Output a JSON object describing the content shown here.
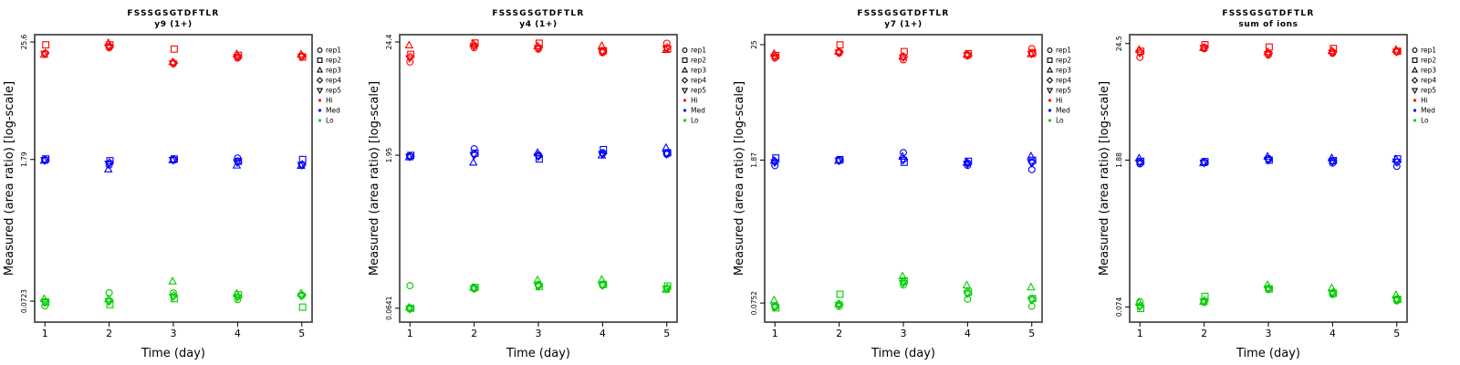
{
  "figure": {
    "background": "#ffffff",
    "border_color": "#4d4d4d",
    "text_color": "#000000"
  },
  "chart_data": {
    "type": "scatter",
    "layout": "4 small-multiple panels, shared axes style, legend right of each plot box",
    "shared": {
      "xlabel": "Time (day)",
      "ylabel": "Measured (area ratio) [log-scale]",
      "x_ticks": [
        "1",
        "2",
        "3",
        "4",
        "5"
      ],
      "x_values": [
        1,
        2,
        3,
        4,
        5
      ],
      "xlim": [
        0.84,
        5.16
      ],
      "yscale": "log",
      "grid": "off",
      "legend_position": "right-outside-top",
      "levels": [
        {
          "name": "Hi",
          "color": "#ff0000"
        },
        {
          "name": "Med",
          "color": "#0000ff"
        },
        {
          "name": "Lo",
          "color": "#00cd00"
        }
      ],
      "reps": [
        {
          "name": "rep1",
          "symbol": "circle"
        },
        {
          "name": "rep2",
          "symbol": "square"
        },
        {
          "name": "rep3",
          "symbol": "triangle-up"
        },
        {
          "name": "rep4",
          "symbol": "diamond"
        },
        {
          "name": "rep5",
          "symbol": "triangle-down"
        }
      ]
    },
    "panels": [
      {
        "title": "FSSSGSGTDFTLR",
        "subtitle": "y9 (1+)",
        "yticks": [
          "25.6",
          "1.79",
          "0.0723"
        ],
        "ytick_values": [
          25.6,
          1.79,
          0.0723
        ],
        "ylim": [
          0.045,
          30.2
        ],
        "series": {
          "Hi": [
            [
              19.7,
              24.0,
              19.2,
              19.9,
              19.6
            ],
            [
              22.5,
              24.0,
              25.0,
              23.2,
              23.0
            ],
            [
              15.7,
              21.8,
              16.2,
              15.9,
              15.8
            ],
            [
              17.8,
              18.9,
              19.4,
              18.4,
              18.2
            ],
            [
              18.6,
              18.2,
              19.3,
              18.6,
              18.4
            ]
          ],
          "Med": [
            [
              1.76,
              1.81,
              1.74,
              1.77,
              1.76
            ],
            [
              1.58,
              1.74,
              1.43,
              1.66,
              1.63
            ],
            [
              1.78,
              1.81,
              1.76,
              1.78,
              1.77
            ],
            [
              1.85,
              1.72,
              1.56,
              1.7,
              1.68
            ],
            [
              1.57,
              1.79,
              1.55,
              1.6,
              1.58
            ]
          ],
          "Lo": [
            [
              0.065,
              0.071,
              0.076,
              0.0715,
              0.0705
            ],
            [
              0.0875,
              0.067,
              0.0755,
              0.073,
              0.072
            ],
            [
              0.087,
              0.0765,
              0.113,
              0.082,
              0.08
            ],
            [
              0.075,
              0.0835,
              0.0855,
              0.08,
              0.079
            ],
            [
              0.082,
              0.0632,
              0.086,
              0.083,
              0.0815
            ]
          ]
        }
      },
      {
        "title": "FSSSGSGTDFTLR",
        "subtitle": "y4 (1+)",
        "yticks": [
          "24.4",
          "1.95",
          "0.0641"
        ],
        "ytick_values": [
          24.4,
          1.95,
          0.0641
        ],
        "ylim": [
          0.047,
          28.7
        ],
        "series": {
          "Hi": [
            [
              15.6,
              18.5,
              22.6,
              17.5,
              17.0
            ],
            [
              21.5,
              23.8,
              23.3,
              22.5,
              22.2
            ],
            [
              20.8,
              23.7,
              22.2,
              21.5,
              21.3
            ],
            [
              19.2,
              20.1,
              22.3,
              19.8,
              19.6
            ],
            [
              23.7,
              20.9,
              20.4,
              21.5,
              21.2
            ]
          ],
          "Med": [
            [
              1.9,
              1.94,
              1.86,
              1.9,
              1.89
            ],
            [
              2.25,
              2.04,
              1.65,
              1.98,
              1.96
            ],
            [
              1.96,
              1.79,
              2.05,
              1.92,
              1.9
            ],
            [
              2.06,
              2.21,
              1.94,
              2.02,
              2.0
            ],
            [
              1.99,
              2.06,
              2.29,
              2.03,
              2.01
            ]
          ],
          "Lo": [
            [
              0.106,
              0.064,
              0.065,
              0.0638,
              0.0632
            ],
            [
              0.099,
              0.102,
              0.101,
              0.1,
              0.0995
            ],
            [
              0.109,
              0.104,
              0.12,
              0.106,
              0.105
            ],
            [
              0.107,
              0.109,
              0.121,
              0.108,
              0.107
            ],
            [
              0.0983,
              0.105,
              0.097,
              0.1,
              0.0995
            ]
          ]
        }
      },
      {
        "title": "FSSSGSGTDFTLR",
        "subtitle": "y7 (1+)",
        "yticks": [
          "25",
          "1.87",
          "0.0752"
        ],
        "ytick_values": [
          25,
          1.87,
          0.0752
        ],
        "ylim": [
          0.049,
          31.3
        ],
        "series": {
          "Hi": [
            [
              18.5,
              19.6,
              20.4,
              19.3,
              19.1
            ],
            [
              20.7,
              24.9,
              21.4,
              21.2,
              21.0
            ],
            [
              17.8,
              21.4,
              19.1,
              19.0,
              18.8
            ],
            [
              19.5,
              20.4,
              19.9,
              19.8,
              19.7
            ],
            [
              22.9,
              20.9,
              20.2,
              20.6,
              20.4
            ]
          ],
          "Med": [
            [
              1.65,
              1.96,
              1.84,
              1.8,
              1.78
            ],
            [
              1.87,
              1.89,
              1.84,
              1.86,
              1.85
            ],
            [
              2.21,
              1.78,
              2.02,
              1.9,
              1.88
            ],
            [
              1.66,
              1.82,
              1.76,
              1.74,
              1.72
            ],
            [
              1.51,
              1.86,
              2.03,
              1.78,
              1.76
            ]
          ],
          "Lo": [
            [
              0.069,
              0.0675,
              0.08,
              0.07,
              0.0695
            ],
            [
              0.0697,
              0.0917,
              0.0737,
              0.073,
              0.0725
            ],
            [
              0.113,
              0.124,
              0.137,
              0.12,
              0.118
            ],
            [
              0.082,
              0.096,
              0.112,
              0.094,
              0.093
            ],
            [
              0.07,
              0.0832,
              0.107,
              0.082,
              0.081
            ]
          ]
        }
      },
      {
        "title": "FSSSGSGTDFTLR",
        "subtitle": "sum of ions",
        "yticks": [
          "24.5",
          "1.88",
          "0.074"
        ],
        "ytick_values": [
          24.5,
          1.88,
          0.074
        ],
        "ylim": [
          0.053,
          29.8
        ],
        "series": {
          "Hi": [
            [
              18.1,
              20.7,
              21.4,
              20.2,
              20.0
            ],
            [
              21.9,
              23.9,
              22.2,
              22.5,
              22.3
            ],
            [
              19.0,
              22.7,
              20.3,
              19.8,
              19.5
            ],
            [
              19.8,
              22.0,
              20.8,
              20.3,
              20.1
            ],
            [
              20.4,
              20.7,
              21.4,
              20.6,
              20.5
            ]
          ],
          "Med": [
            [
              1.73,
              1.83,
              1.95,
              1.8,
              1.79
            ],
            [
              1.78,
              1.82,
              1.76,
              1.79,
              1.78
            ],
            [
              1.95,
              1.88,
              2.03,
              1.9,
              1.89
            ],
            [
              1.76,
              1.86,
              1.96,
              1.84,
              1.83
            ],
            [
              1.64,
              1.93,
              1.91,
              1.8,
              1.82
            ]
          ],
          "Lo": [
            [
              0.0832,
              0.0715,
              0.0817,
              0.076,
              0.075
            ],
            [
              0.0817,
              0.0935,
              0.0832,
              0.085,
              0.084
            ],
            [
              0.109,
              0.11,
              0.12,
              0.112,
              0.111
            ],
            [
              0.0975,
              0.1,
              0.112,
              0.102,
              0.101
            ],
            [
              0.0847,
              0.0875,
              0.096,
              0.088,
              0.087
            ]
          ]
        }
      }
    ]
  }
}
